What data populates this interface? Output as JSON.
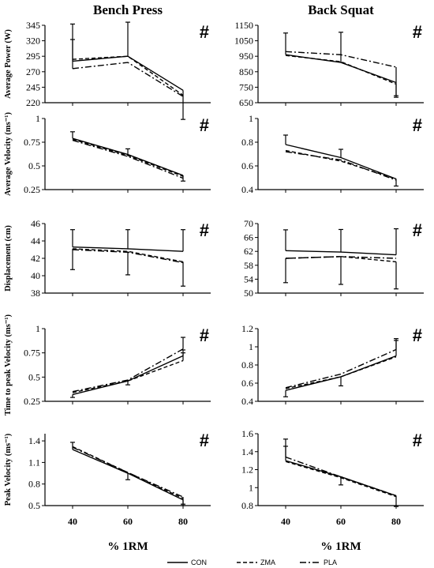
{
  "columns": [
    "Bench Press",
    "Back Squat"
  ],
  "x_axis_label": "% 1RM",
  "significance_marker": "#",
  "legend": [
    {
      "name": "CON",
      "dash": "solid"
    },
    {
      "name": "ZMA",
      "dash": "dashed"
    },
    {
      "name": "PLA",
      "dash": "dashdot"
    }
  ],
  "chart_data": [
    {
      "type": "line",
      "column": "Bench Press",
      "row": 0,
      "ylabel": "Average Power (W)",
      "x": [
        40,
        60,
        80
      ],
      "ylim": [
        220,
        345
      ],
      "yticks": [
        "220",
        "245",
        "270",
        "295",
        "320",
        "345"
      ],
      "series": [
        {
          "name": "CON",
          "values": [
            287,
            295,
            240
          ],
          "errors": [
            60,
            55,
            47
          ]
        },
        {
          "name": "ZMA",
          "values": [
            290,
            295,
            232
          ],
          "errors": [
            0,
            0,
            0
          ]
        },
        {
          "name": "PLA",
          "values": [
            275,
            285,
            230
          ],
          "errors": [
            47,
            0,
            0
          ]
        }
      ]
    },
    {
      "type": "line",
      "column": "Back Squat",
      "row": 0,
      "ylabel": "",
      "x": [
        40,
        60,
        80
      ],
      "ylim": [
        650,
        1150
      ],
      "yticks": [
        "650",
        "750",
        "850",
        "950",
        "1050",
        "1150"
      ],
      "series": [
        {
          "name": "CON",
          "values": [
            960,
            910,
            780
          ],
          "errors": [
            140,
            195,
            0
          ]
        },
        {
          "name": "ZMA",
          "values": [
            955,
            915,
            770
          ],
          "errors": [
            0,
            0,
            85
          ]
        },
        {
          "name": "PLA",
          "values": [
            980,
            960,
            880
          ],
          "errors": [
            0,
            0,
            185
          ]
        }
      ]
    },
    {
      "type": "line",
      "column": "Bench Press",
      "row": 1,
      "ylabel": "Average Velocity (ms⁻¹)",
      "x": [
        40,
        60,
        80
      ],
      "ylim": [
        0.25,
        1
      ],
      "yticks": [
        "0.25",
        "0.5",
        "0.75",
        "1"
      ],
      "series": [
        {
          "name": "CON",
          "values": [
            0.79,
            0.62,
            0.4
          ],
          "errors": [
            0.07,
            0.06,
            0.06
          ]
        },
        {
          "name": "ZMA",
          "values": [
            0.78,
            0.61,
            0.39
          ],
          "errors": [
            0,
            0,
            0
          ]
        },
        {
          "name": "PLA",
          "values": [
            0.77,
            0.6,
            0.37
          ],
          "errors": [
            0,
            0,
            0
          ]
        }
      ]
    },
    {
      "type": "line",
      "column": "Back Squat",
      "row": 1,
      "ylabel": "",
      "x": [
        40,
        60,
        80
      ],
      "ylim": [
        0.4,
        1
      ],
      "yticks": [
        "0.4",
        "0.6",
        "0.8",
        "1"
      ],
      "series": [
        {
          "name": "CON",
          "values": [
            0.78,
            0.67,
            0.49
          ],
          "errors": [
            0.08,
            0.07,
            0.06
          ]
        },
        {
          "name": "ZMA",
          "values": [
            0.73,
            0.64,
            0.49
          ],
          "errors": [
            0,
            0,
            0
          ]
        },
        {
          "name": "PLA",
          "values": [
            0.72,
            0.65,
            0.48
          ],
          "errors": [
            0,
            0,
            0
          ]
        }
      ]
    },
    {
      "type": "line",
      "column": "Bench Press",
      "row": 2,
      "ylabel": "Displacement (cm)",
      "x": [
        40,
        60,
        80
      ],
      "ylim": [
        38,
        46
      ],
      "yticks": [
        "38",
        "40",
        "42",
        "44",
        "46"
      ],
      "series": [
        {
          "name": "CON",
          "values": [
            43.3,
            43.1,
            42.8
          ],
          "errors": [
            2.0,
            2.2,
            2.5
          ]
        },
        {
          "name": "ZMA",
          "values": [
            43.1,
            42.8,
            41.6
          ],
          "errors": [
            2.4,
            2.7,
            2.8
          ]
        },
        {
          "name": "PLA",
          "values": [
            43.0,
            42.7,
            41.5
          ],
          "errors": [
            0,
            0,
            0
          ]
        }
      ]
    },
    {
      "type": "line",
      "column": "Back Squat",
      "row": 2,
      "ylabel": "",
      "x": [
        40,
        60,
        80
      ],
      "ylim": [
        50,
        70
      ],
      "yticks": [
        "50",
        "54",
        "58",
        "62",
        "66",
        "70"
      ],
      "series": [
        {
          "name": "CON",
          "values": [
            62.2,
            61.8,
            61.0
          ],
          "errors": [
            6.0,
            6.5,
            7.5
          ]
        },
        {
          "name": "ZMA",
          "values": [
            60.0,
            60.5,
            59.0
          ],
          "errors": [
            7.0,
            8.0,
            7.8
          ]
        },
        {
          "name": "PLA",
          "values": [
            60.0,
            60.5,
            60.0
          ],
          "errors": [
            0,
            0,
            0
          ]
        }
      ]
    },
    {
      "type": "line",
      "column": "Bench Press",
      "row": 3,
      "ylabel": "Time to peak Velocity (ms⁻¹)",
      "x": [
        40,
        60,
        80
      ],
      "ylim": [
        0.25,
        1
      ],
      "yticks": [
        "0.25",
        "0.5",
        "0.75",
        "1"
      ],
      "series": [
        {
          "name": "CON",
          "values": [
            0.32,
            0.46,
            0.72
          ],
          "errors": [
            0.03,
            0.04,
            0.06
          ]
        },
        {
          "name": "ZMA",
          "values": [
            0.34,
            0.46,
            0.67
          ],
          "errors": [
            0,
            0,
            0.08
          ]
        },
        {
          "name": "PLA",
          "values": [
            0.35,
            0.47,
            0.79
          ],
          "errors": [
            0,
            0,
            0.12
          ]
        }
      ]
    },
    {
      "type": "line",
      "column": "Back Squat",
      "row": 3,
      "ylabel": "",
      "x": [
        40,
        60,
        80
      ],
      "ylim": [
        0.4,
        1.2
      ],
      "yticks": [
        "0.4",
        "0.6",
        "0.8",
        "1",
        "1.2"
      ],
      "series": [
        {
          "name": "CON",
          "values": [
            0.52,
            0.67,
            0.9
          ],
          "errors": [
            0.07,
            0.1,
            0.17
          ]
        },
        {
          "name": "ZMA",
          "values": [
            0.54,
            0.67,
            0.89
          ],
          "errors": [
            0,
            0,
            0
          ]
        },
        {
          "name": "PLA",
          "values": [
            0.55,
            0.7,
            0.97
          ],
          "errors": [
            0,
            0,
            0.12
          ]
        }
      ]
    },
    {
      "type": "line",
      "column": "Bench Press",
      "row": 4,
      "ylabel": "Peak Velocity (ms⁻¹)",
      "x": [
        40,
        60,
        80
      ],
      "ylim": [
        0.5,
        1.5
      ],
      "yticks": [
        "0.5",
        "0.8",
        "1.1",
        "1.4"
      ],
      "series": [
        {
          "name": "CON",
          "values": [
            1.28,
            0.95,
            0.58
          ],
          "errors": [
            0.1,
            0.09,
            0.08
          ]
        },
        {
          "name": "ZMA",
          "values": [
            1.32,
            0.96,
            0.6
          ],
          "errors": [
            0,
            0,
            0
          ]
        },
        {
          "name": "PLA",
          "values": [
            1.31,
            0.96,
            0.62
          ],
          "errors": [
            0,
            0,
            0.1
          ]
        }
      ]
    },
    {
      "type": "line",
      "column": "Back Squat",
      "row": 4,
      "ylabel": "",
      "x": [
        40,
        60,
        80
      ],
      "ylim": [
        0.8,
        1.6
      ],
      "yticks": [
        "0.8",
        "1",
        "1.2",
        "1.4",
        "1.6"
      ],
      "series": [
        {
          "name": "CON",
          "values": [
            1.3,
            1.12,
            0.91
          ],
          "errors": [
            0.16,
            0.09,
            0.12
          ]
        },
        {
          "name": "ZMA",
          "values": [
            1.29,
            1.11,
            0.9
          ],
          "errors": [
            0,
            0,
            0
          ]
        },
        {
          "name": "PLA",
          "values": [
            1.34,
            1.12,
            0.91
          ],
          "errors": [
            0.2,
            0,
            0
          ]
        }
      ]
    }
  ]
}
